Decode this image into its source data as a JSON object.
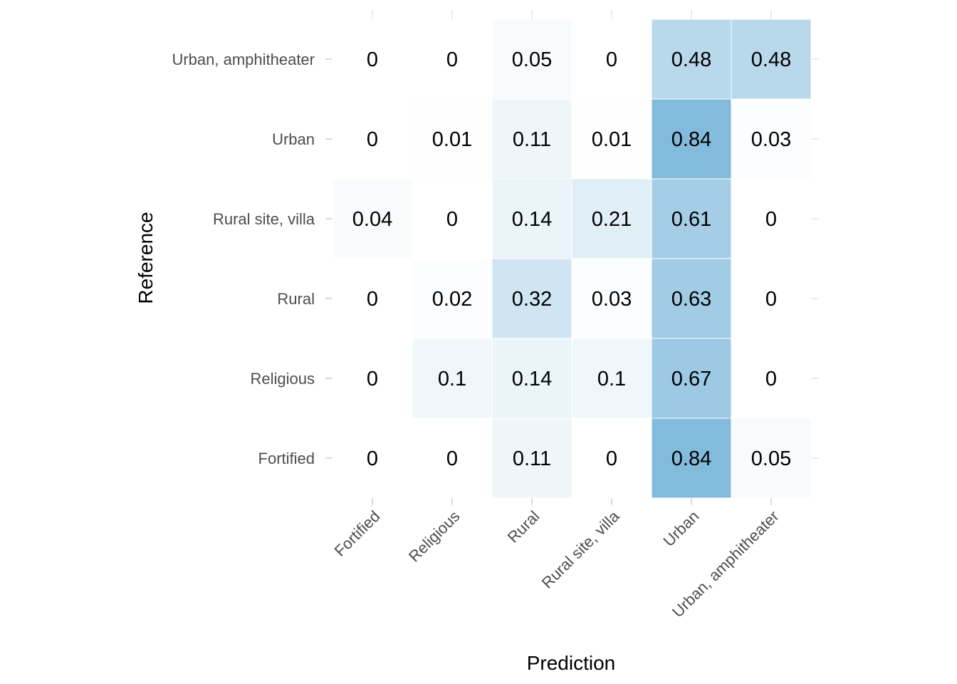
{
  "chart_data": {
    "type": "heatmap",
    "xlabel": "Prediction",
    "ylabel": "Reference",
    "x_categories": [
      "Fortified",
      "Religious",
      "Rural",
      "Rural site, villa",
      "Urban",
      "Urban, amphitheater"
    ],
    "y_categories": [
      "Fortified",
      "Religious",
      "Rural",
      "Rural site, villa",
      "Urban",
      "Urban, amphitheater"
    ],
    "values": [
      [
        0,
        0,
        0.11,
        0,
        0.84,
        0.05
      ],
      [
        0,
        0.1,
        0.14,
        0.1,
        0.67,
        0
      ],
      [
        0,
        0.02,
        0.32,
        0.03,
        0.63,
        0
      ],
      [
        0.04,
        0,
        0.14,
        0.21,
        0.61,
        0
      ],
      [
        0,
        0.01,
        0.11,
        0.01,
        0.84,
        0.03
      ],
      [
        0,
        0,
        0.05,
        0,
        0.48,
        0.48
      ]
    ],
    "value_range": [
      0,
      1
    ],
    "color_low": "#ffffff",
    "color_high": "#6baed6",
    "grid": true,
    "legend": "none"
  }
}
